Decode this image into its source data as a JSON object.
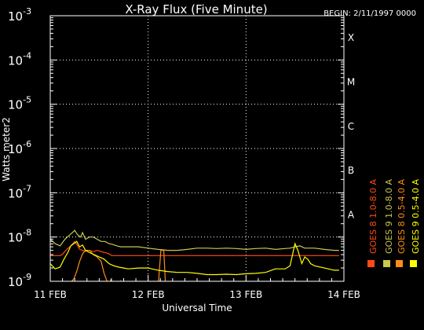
{
  "chart_data": {
    "type": "line",
    "title": "X-Ray Flux (Five Minute)",
    "begin_label": "BEGIN: 2/11/1997 0000",
    "ylabel": "Watts meter2",
    "xlabel": "Universal Time",
    "y_scale": "log",
    "ylim": [
      1e-09,
      0.001
    ],
    "y_ticks": [
      {
        "base": "10",
        "exp": "-9"
      },
      {
        "base": "10",
        "exp": "-8"
      },
      {
        "base": "10",
        "exp": "-7"
      },
      {
        "base": "10",
        "exp": "-6"
      },
      {
        "base": "10",
        "exp": "-5"
      },
      {
        "base": "10",
        "exp": "-4"
      },
      {
        "base": "10",
        "exp": "-3"
      }
    ],
    "x_unit": "days since 11 FEB 1997 0000 UT",
    "xlim": [
      0,
      3
    ],
    "x_ticks": [
      {
        "x": 0,
        "label": "11 FEB"
      },
      {
        "x": 1,
        "label": "12 FEB"
      },
      {
        "x": 2,
        "label": "13 FEB"
      },
      {
        "x": 3,
        "label": "14 FEB"
      }
    ],
    "vertical_gridlines_x": [
      1,
      2
    ],
    "grid": "dotted",
    "flare_classes": [
      {
        "label": "A",
        "level_exp": -8
      },
      {
        "label": "B",
        "level_exp": -7
      },
      {
        "label": "C",
        "level_exp": -6
      },
      {
        "label": "M",
        "level_exp": -5
      },
      {
        "label": "X",
        "level_exp": -4
      }
    ],
    "legend_position": "right, vertical",
    "series": [
      {
        "name": "GOES 8 1.0-8.0 A",
        "color": "#ff4a14",
        "points": [
          [
            0.0,
            -8.42
          ],
          [
            0.05,
            -8.42
          ],
          [
            0.1,
            -8.42
          ],
          [
            0.12,
            -8.4
          ],
          [
            0.16,
            -8.3
          ],
          [
            0.2,
            -8.22
          ],
          [
            0.25,
            -8.1
          ],
          [
            0.28,
            -8.2
          ],
          [
            0.3,
            -8.28
          ],
          [
            0.33,
            -8.3
          ],
          [
            0.36,
            -8.32
          ],
          [
            0.4,
            -8.3
          ],
          [
            0.44,
            -8.33
          ],
          [
            0.48,
            -8.3
          ],
          [
            0.52,
            -8.33
          ],
          [
            0.56,
            -8.35
          ],
          [
            0.6,
            -8.38
          ],
          [
            0.63,
            -8.42
          ],
          [
            0.66,
            -8.42
          ],
          [
            0.8,
            -8.42
          ],
          [
            1.0,
            -8.42
          ],
          [
            1.3,
            -8.42
          ],
          [
            1.6,
            -8.42
          ],
          [
            2.0,
            -8.42
          ],
          [
            2.4,
            -8.42
          ],
          [
            2.7,
            -8.42
          ],
          [
            2.95,
            -8.42
          ]
        ]
      },
      {
        "name": "GOES 8 0.5-4.0 A",
        "color": "#ff8c1a",
        "points": [
          [
            0.0,
            -9.2
          ],
          [
            0.15,
            -9.2
          ],
          [
            0.2,
            -9.05
          ],
          [
            0.24,
            -8.95
          ],
          [
            0.27,
            -8.78
          ],
          [
            0.3,
            -8.55
          ],
          [
            0.33,
            -8.38
          ],
          [
            0.36,
            -8.3
          ],
          [
            0.4,
            -8.3
          ],
          [
            0.44,
            -8.4
          ],
          [
            0.48,
            -8.45
          ],
          [
            0.52,
            -8.55
          ],
          [
            0.55,
            -8.82
          ],
          [
            0.58,
            -9.0
          ],
          [
            0.6,
            -9.2
          ],
          [
            0.62,
            -8.95
          ],
          [
            0.64,
            -9.1
          ],
          [
            0.66,
            -9.2
          ],
          [
            0.68,
            -9.05
          ],
          [
            0.7,
            -9.15
          ],
          [
            0.72,
            -9.0
          ],
          [
            0.75,
            -9.2
          ],
          [
            0.95,
            -9.2
          ],
          [
            1.05,
            -9.2
          ],
          [
            1.1,
            -9.2
          ],
          [
            1.13,
            -8.3
          ],
          [
            1.16,
            -8.3
          ],
          [
            1.18,
            -9.2
          ],
          [
            1.25,
            -9.2
          ],
          [
            2.2,
            -9.2
          ],
          [
            2.25,
            -9.08
          ],
          [
            2.28,
            -9.2
          ],
          [
            2.5,
            -9.2
          ],
          [
            2.55,
            -9.1
          ],
          [
            2.58,
            -9.2
          ],
          [
            2.95,
            -9.2
          ]
        ]
      },
      {
        "name": "GOES 9 1.0-8.0 A",
        "color": "#c8c850",
        "points": [
          [
            0.0,
            -8.05
          ],
          [
            0.05,
            -8.15
          ],
          [
            0.1,
            -8.2
          ],
          [
            0.15,
            -8.05
          ],
          [
            0.2,
            -7.95
          ],
          [
            0.25,
            -7.85
          ],
          [
            0.28,
            -7.95
          ],
          [
            0.31,
            -8.0
          ],
          [
            0.33,
            -7.9
          ],
          [
            0.36,
            -8.05
          ],
          [
            0.4,
            -8.0
          ],
          [
            0.44,
            -8.0
          ],
          [
            0.48,
            -8.05
          ],
          [
            0.52,
            -8.1
          ],
          [
            0.56,
            -8.1
          ],
          [
            0.6,
            -8.15
          ],
          [
            0.64,
            -8.17
          ],
          [
            0.68,
            -8.2
          ],
          [
            0.72,
            -8.22
          ],
          [
            0.8,
            -8.22
          ],
          [
            0.9,
            -8.22
          ],
          [
            1.0,
            -8.25
          ],
          [
            1.1,
            -8.28
          ],
          [
            1.2,
            -8.3
          ],
          [
            1.3,
            -8.3
          ],
          [
            1.4,
            -8.28
          ],
          [
            1.5,
            -8.25
          ],
          [
            1.6,
            -8.25
          ],
          [
            1.7,
            -8.26
          ],
          [
            1.8,
            -8.25
          ],
          [
            1.9,
            -8.26
          ],
          [
            2.0,
            -8.28
          ],
          [
            2.1,
            -8.26
          ],
          [
            2.2,
            -8.25
          ],
          [
            2.3,
            -8.28
          ],
          [
            2.4,
            -8.26
          ],
          [
            2.45,
            -8.25
          ],
          [
            2.5,
            -8.22
          ],
          [
            2.55,
            -8.2
          ],
          [
            2.6,
            -8.25
          ],
          [
            2.7,
            -8.25
          ],
          [
            2.8,
            -8.28
          ],
          [
            2.9,
            -8.3
          ],
          [
            2.95,
            -8.3
          ]
        ]
      },
      {
        "name": "GOES 9 0.5-4.0 A",
        "color": "#ffff00",
        "points": [
          [
            0.0,
            -8.6
          ],
          [
            0.05,
            -8.72
          ],
          [
            0.1,
            -8.68
          ],
          [
            0.14,
            -8.5
          ],
          [
            0.18,
            -8.35
          ],
          [
            0.21,
            -8.2
          ],
          [
            0.24,
            -8.15
          ],
          [
            0.27,
            -8.1
          ],
          [
            0.3,
            -8.22
          ],
          [
            0.33,
            -8.18
          ],
          [
            0.36,
            -8.3
          ],
          [
            0.4,
            -8.35
          ],
          [
            0.45,
            -8.4
          ],
          [
            0.5,
            -8.45
          ],
          [
            0.55,
            -8.5
          ],
          [
            0.6,
            -8.6
          ],
          [
            0.65,
            -8.65
          ],
          [
            0.7,
            -8.68
          ],
          [
            0.75,
            -8.7
          ],
          [
            0.8,
            -8.72
          ],
          [
            0.9,
            -8.7
          ],
          [
            1.0,
            -8.7
          ],
          [
            1.1,
            -8.75
          ],
          [
            1.2,
            -8.78
          ],
          [
            1.3,
            -8.8
          ],
          [
            1.4,
            -8.8
          ],
          [
            1.5,
            -8.82
          ],
          [
            1.6,
            -8.85
          ],
          [
            1.7,
            -8.85
          ],
          [
            1.8,
            -8.84
          ],
          [
            1.9,
            -8.85
          ],
          [
            2.0,
            -8.83
          ],
          [
            2.1,
            -8.82
          ],
          [
            2.2,
            -8.8
          ],
          [
            2.3,
            -8.72
          ],
          [
            2.4,
            -8.72
          ],
          [
            2.45,
            -8.65
          ],
          [
            2.5,
            -8.15
          ],
          [
            2.53,
            -8.3
          ],
          [
            2.57,
            -8.6
          ],
          [
            2.6,
            -8.45
          ],
          [
            2.63,
            -8.5
          ],
          [
            2.66,
            -8.6
          ],
          [
            2.7,
            -8.65
          ],
          [
            2.8,
            -8.7
          ],
          [
            2.9,
            -8.75
          ],
          [
            2.95,
            -8.75
          ]
        ]
      }
    ]
  }
}
